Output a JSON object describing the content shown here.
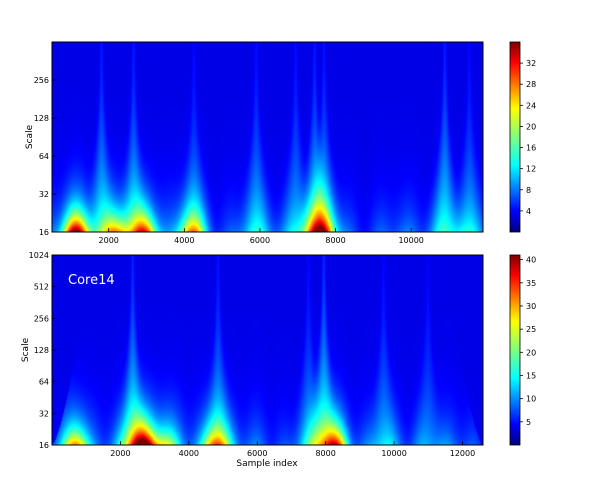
{
  "chart_data": [
    {
      "type": "heatmap",
      "title": "",
      "xlabel": "",
      "ylabel": "Scale",
      "xlim": [
        500,
        11900
      ],
      "x_ticks": [
        2000,
        4000,
        6000,
        8000,
        10000
      ],
      "ylim": [
        16,
        512
      ],
      "y_scale": "log2",
      "y_ticks": [
        16,
        32,
        64,
        128,
        256
      ],
      "colorbar": {
        "range": [
          0,
          36
        ],
        "ticks": [
          4,
          8,
          12,
          16,
          20,
          24,
          28,
          32
        ]
      },
      "colormap": "jet",
      "annotation": "",
      "hot_spots": [
        {
          "x": 1100,
          "intensity": 34
        },
        {
          "x": 2950,
          "intensity": 24
        },
        {
          "x": 7600,
          "intensity": 20
        },
        {
          "x": 4200,
          "intensity": 17
        },
        {
          "x": 2200,
          "intensity": 16
        }
      ],
      "ridges": [
        {
          "x": 1800,
          "strength": 0.45
        },
        {
          "x": 2650,
          "strength": 0.45
        },
        {
          "x": 4250,
          "strength": 0.3
        },
        {
          "x": 5900,
          "strength": 0.35
        },
        {
          "x": 6950,
          "strength": 0.35
        },
        {
          "x": 7450,
          "strength": 0.45
        },
        {
          "x": 7700,
          "strength": 0.4
        },
        {
          "x": 10900,
          "strength": 0.5
        },
        {
          "x": 11550,
          "strength": 0.3
        }
      ]
    },
    {
      "type": "heatmap",
      "title": "",
      "xlabel": "Sample index",
      "ylabel": "Scale",
      "xlim": [
        0,
        12600
      ],
      "x_ticks": [
        2000,
        4000,
        6000,
        8000,
        10000,
        12000
      ],
      "ylim": [
        16,
        1024
      ],
      "y_scale": "log2",
      "y_ticks": [
        16,
        32,
        64,
        128,
        256,
        512,
        1024
      ],
      "colorbar": {
        "range": [
          0,
          41
        ],
        "ticks": [
          5,
          10,
          15,
          20,
          25,
          30,
          35,
          40
        ]
      },
      "colormap": "jet",
      "annotation": "Core14",
      "hot_spots": [
        {
          "x": 2650,
          "intensity": 38
        },
        {
          "x": 700,
          "intensity": 27
        },
        {
          "x": 8300,
          "intensity": 26
        },
        {
          "x": 4800,
          "intensity": 23
        },
        {
          "x": 3300,
          "intensity": 20
        }
      ],
      "ridges": [
        {
          "x": 2350,
          "strength": 0.55
        },
        {
          "x": 4850,
          "strength": 0.4
        },
        {
          "x": 7950,
          "strength": 0.6
        },
        {
          "x": 7500,
          "strength": 0.3
        },
        {
          "x": 9700,
          "strength": 0.3
        },
        {
          "x": 11000,
          "strength": 0.25
        }
      ]
    }
  ]
}
